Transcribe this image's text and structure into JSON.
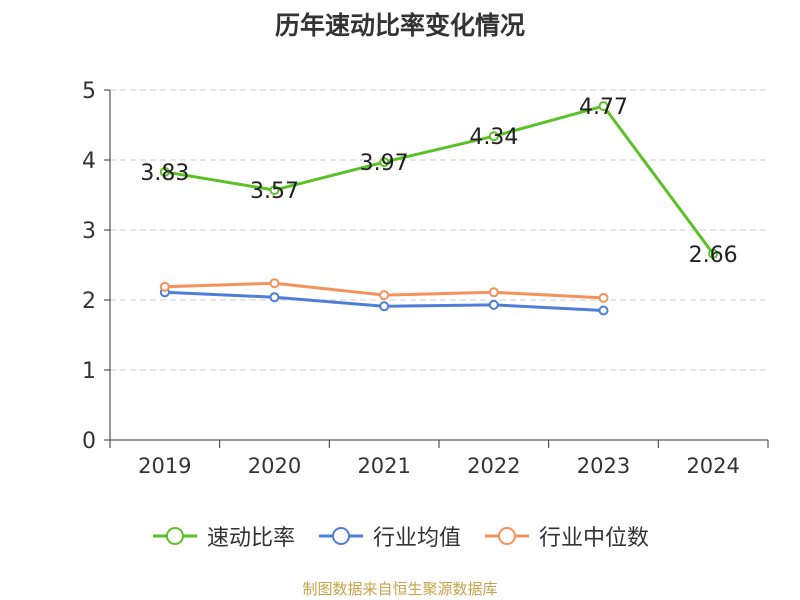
{
  "chart_data": {
    "type": "line",
    "title": "历年速动比率变化情况",
    "categories": [
      "2019",
      "2020",
      "2021",
      "2022",
      "2023",
      "2024"
    ],
    "ylim": [
      0,
      5
    ],
    "yticks": [
      "0",
      "1",
      "2",
      "3",
      "4",
      "5"
    ],
    "grid": true,
    "legend_position": "bottom",
    "series": [
      {
        "name": "速动比率",
        "color": "#5cc027",
        "values": [
          3.83,
          3.57,
          3.97,
          4.34,
          4.77,
          2.66
        ],
        "labels": [
          "3.83",
          "3.57",
          "3.97",
          "4.34",
          "4.77",
          "2.66"
        ]
      },
      {
        "name": "行业均值",
        "color": "#4e7fd8",
        "values": [
          2.11,
          2.04,
          1.91,
          1.93,
          1.85,
          null
        ]
      },
      {
        "name": "行业中位数",
        "color": "#f5915a",
        "values": [
          2.19,
          2.24,
          2.07,
          2.11,
          2.03,
          null
        ]
      }
    ]
  },
  "source": "制图数据来自恒生聚源数据库"
}
